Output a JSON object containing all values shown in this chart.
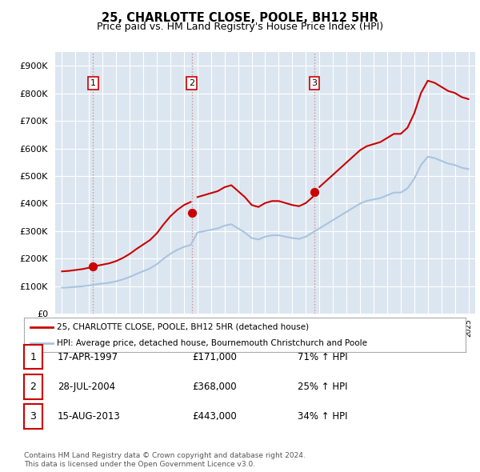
{
  "title": "25, CHARLOTTE CLOSE, POOLE, BH12 5HR",
  "subtitle": "Price paid vs. HM Land Registry's House Price Index (HPI)",
  "background_color": "#ffffff",
  "plot_bg_color": "#dce6f0",
  "grid_color": "#ffffff",
  "sale_color": "#cc0000",
  "hpi_color": "#a8c4e0",
  "vline_color": "#ccaaaa",
  "sale_dates_display": [
    "17-APR-1997",
    "28-JUL-2004",
    "15-AUG-2013"
  ],
  "sale_prices_display": [
    "£171,000",
    "£368,000",
    "£443,000"
  ],
  "sale_hpi_pct": [
    "71%",
    "25%",
    "34%"
  ],
  "legend_line1": "25, CHARLOTTE CLOSE, POOLE, BH12 5HR (detached house)",
  "legend_line2": "HPI: Average price, detached house, Bournemouth Christchurch and Poole",
  "footnote1": "Contains HM Land Registry data © Crown copyright and database right 2024.",
  "footnote2": "This data is licensed under the Open Government Licence v3.0.",
  "ylim": [
    0,
    950000
  ],
  "yticks": [
    0,
    100000,
    200000,
    300000,
    400000,
    500000,
    600000,
    700000,
    800000,
    900000
  ],
  "xmin": 1994.5,
  "xmax": 2025.5,
  "sale1_year": 1997.29,
  "sale1_price": 171000,
  "sale2_year": 2004.57,
  "sale2_price": 368000,
  "sale3_year": 2013.62,
  "sale3_price": 443000
}
